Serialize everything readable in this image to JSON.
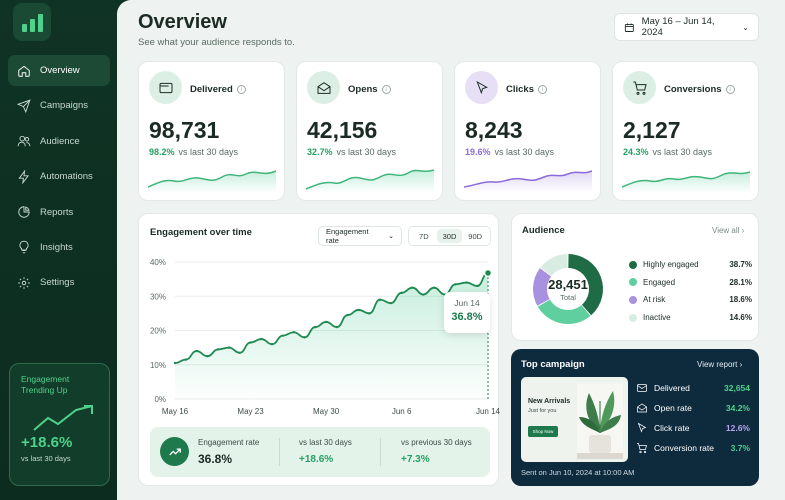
{
  "sidebar": {
    "logo": "bar-chart-icon",
    "items": [
      {
        "label": "Overview",
        "icon": "home-icon",
        "active": true
      },
      {
        "label": "Campaigns",
        "icon": "send-icon",
        "active": false
      },
      {
        "label": "Audience",
        "icon": "users-icon",
        "active": false
      },
      {
        "label": "Automations",
        "icon": "bolt-icon",
        "active": false
      },
      {
        "label": "Reports",
        "icon": "pie-icon",
        "active": false
      },
      {
        "label": "Insights",
        "icon": "bulb-icon",
        "active": false
      },
      {
        "label": "Settings",
        "icon": "gear-icon",
        "active": false
      }
    ],
    "promo": {
      "title": "Engagement Trending Up",
      "value": "+18.6%",
      "sub": "vs last 30 days"
    }
  },
  "header": {
    "title": "Overview",
    "subtitle": "See what your audience responds to.",
    "date_range": "May 16 – Jun 14, 2024"
  },
  "kpis": [
    {
      "label": "Delivered",
      "value": "98,731",
      "delta": "98.2%",
      "compare": "vs last 30 days",
      "icon": "mail-card-icon",
      "color": "#dcefe4"
    },
    {
      "label": "Opens",
      "value": "42,156",
      "delta": "32.7%",
      "compare": "vs last 30 days",
      "icon": "open-envelope-icon",
      "color": "#dcefe4"
    },
    {
      "label": "Clicks",
      "value": "8,243",
      "delta": "19.6%",
      "compare": "vs last 30 days",
      "icon": "cursor-icon",
      "color": "#e6dff6"
    },
    {
      "label": "Conversions",
      "value": "2,127",
      "delta": "24.3%",
      "compare": "vs last 30 days",
      "icon": "cart-icon",
      "color": "#dcefe4"
    }
  ],
  "engagement": {
    "title": "Engagement over time",
    "select": "Engagement rate",
    "ranges": [
      "7D",
      "30D",
      "90D"
    ],
    "selected_range": "30D",
    "tooltip": {
      "date": "Jun 14",
      "value": "36.8%"
    },
    "footer": {
      "rate_label": "Engagement rate",
      "rate_value": "36.8%",
      "last_label": "vs last 30 days",
      "last_value": "+18.6%",
      "prev_label": "vs previous 30 days",
      "prev_value": "+7.3%"
    }
  },
  "chart_data": {
    "type": "area",
    "x": [
      "May 16",
      "May 17",
      "May 18",
      "May 19",
      "May 20",
      "May 21",
      "May 22",
      "May 23",
      "May 24",
      "May 25",
      "May 26",
      "May 27",
      "May 28",
      "May 29",
      "May 30",
      "May 31",
      "Jun 1",
      "Jun 2",
      "Jun 3",
      "Jun 4",
      "Jun 5",
      "Jun 6",
      "Jun 7",
      "Jun 8",
      "Jun 9",
      "Jun 10",
      "Jun 11",
      "Jun 12",
      "Jun 13",
      "Jun 14"
    ],
    "x_ticks": [
      "May 16",
      "May 23",
      "May 30",
      "Jun 6",
      "Jun 14"
    ],
    "values": [
      10.5,
      11.5,
      14,
      12.5,
      14.5,
      15,
      13.5,
      16.5,
      17.5,
      16,
      18.5,
      19.5,
      18,
      21,
      22.5,
      21,
      24.5,
      26,
      25,
      29,
      28,
      31,
      32.5,
      30.5,
      32.5,
      30.5,
      33.5,
      34,
      33,
      36.8
    ],
    "y_ticks": [
      "0%",
      "10%",
      "20%",
      "30%",
      "40%"
    ],
    "ylim": [
      0,
      40
    ]
  },
  "audience": {
    "title": "Audience",
    "view_all": "View all",
    "total": "28,451",
    "total_label": "Total",
    "segments": [
      {
        "label": "Highly engaged",
        "pct": "38.7%",
        "value": 38.7,
        "color": "#1e6b45"
      },
      {
        "label": "Engaged",
        "pct": "28.1%",
        "value": 28.1,
        "color": "#5fcf9f"
      },
      {
        "label": "At risk",
        "pct": "18.6%",
        "value": 18.6,
        "color": "#a892e0"
      },
      {
        "label": "Inactive",
        "pct": "14.6%",
        "value": 14.6,
        "color": "#d9ece2"
      }
    ]
  },
  "top_campaign": {
    "title": "Top campaign",
    "view_report": "View report",
    "thumb_title": "New Arrivals",
    "thumb_sub": "Just for you",
    "thumb_button": "Shop Now",
    "metrics": [
      {
        "label": "Delivered",
        "value": "32,654",
        "icon": "mail-icon",
        "color": "#4fd18b"
      },
      {
        "label": "Open rate",
        "value": "34.2%",
        "icon": "open-envelope-icon",
        "color": "#4fd18b"
      },
      {
        "label": "Click rate",
        "value": "12.6%",
        "icon": "cursor-icon",
        "color": "#b9a4f0"
      },
      {
        "label": "Conversion rate",
        "value": "3.7%",
        "icon": "cart-icon",
        "color": "#4fd18b"
      }
    ],
    "sent": "Sent on Jun 10, 2024 at 10:00 AM"
  }
}
